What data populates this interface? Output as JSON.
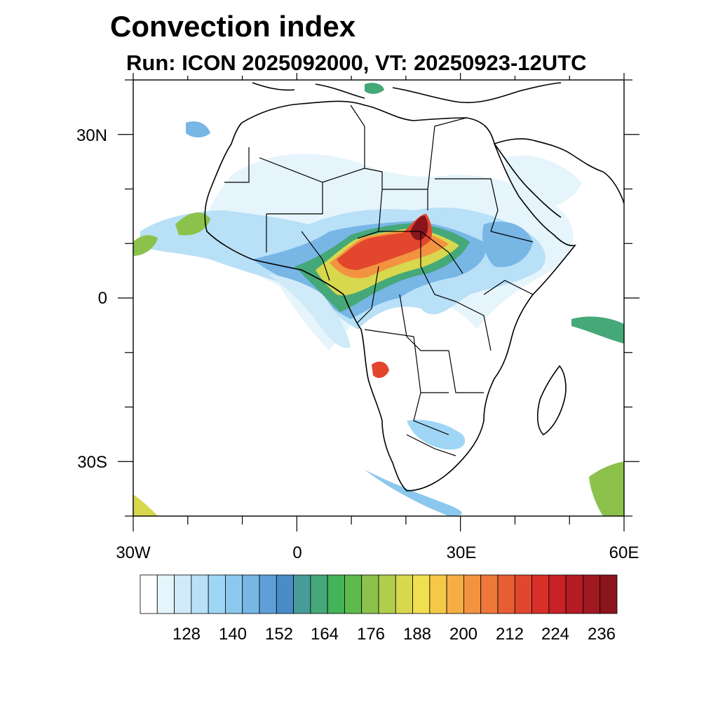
{
  "title": "Convection index",
  "subtitle": "Run: ICON 2025092000,  VT: 20250923-12UTC",
  "axes": {
    "lat_labels": [
      "30N",
      "0",
      "30S"
    ],
    "lon_labels": [
      "30W",
      "0",
      "30E",
      "60E"
    ],
    "lat_range": [
      -40,
      40
    ],
    "lon_range": [
      -30,
      60
    ]
  },
  "colorbar": {
    "tick_labels": [
      "128",
      "140",
      "152",
      "164",
      "176",
      "188",
      "200",
      "212",
      "224",
      "236"
    ],
    "colors": [
      "#ffffff",
      "#e6f4fc",
      "#cfeaf9",
      "#b8e0f7",
      "#a0d6f5",
      "#8cc8ee",
      "#78b6e6",
      "#5f9fd8",
      "#4a8cc8",
      "#479c9a",
      "#45a878",
      "#43b45a",
      "#5cbb4c",
      "#8cc24c",
      "#b2cc4c",
      "#d8d84e",
      "#f0e050",
      "#f5c848",
      "#f6ae44",
      "#f39340",
      "#ee783a",
      "#e85e34",
      "#e2472e",
      "#d83028",
      "#c82226",
      "#b41c24",
      "#a01820",
      "#8a141c"
    ]
  }
}
